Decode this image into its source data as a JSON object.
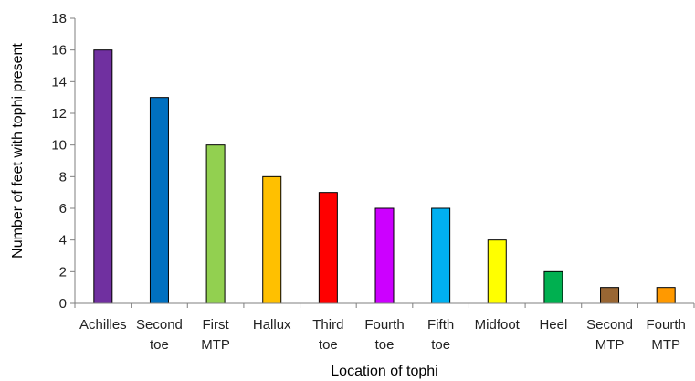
{
  "chart_data": {
    "type": "bar",
    "categories": [
      [
        "Achilles"
      ],
      [
        "Second",
        "toe"
      ],
      [
        "First",
        "MTP"
      ],
      [
        "Hallux"
      ],
      [
        "Third",
        "toe"
      ],
      [
        "Fourth",
        "toe"
      ],
      [
        "Fifth",
        "toe"
      ],
      [
        "Midfoot"
      ],
      [
        "Heel"
      ],
      [
        "Second",
        "MTP"
      ],
      [
        "Fourth",
        "MTP"
      ]
    ],
    "values": [
      16,
      13,
      10,
      8,
      7,
      6,
      6,
      4,
      2,
      1,
      1
    ],
    "colors": [
      "#7030a0",
      "#0070c0",
      "#92d050",
      "#ffc000",
      "#ff0000",
      "#cc00ff",
      "#00b0f0",
      "#ffff00",
      "#00b050",
      "#996633",
      "#ff9900"
    ],
    "xlabel": "Location of tophi",
    "ylabel": "Number of feet with tophi present",
    "ylim": [
      0,
      18
    ],
    "yticks": [
      0,
      2,
      4,
      6,
      8,
      10,
      12,
      14,
      16,
      18
    ],
    "grid": false,
    "legend": "none"
  }
}
